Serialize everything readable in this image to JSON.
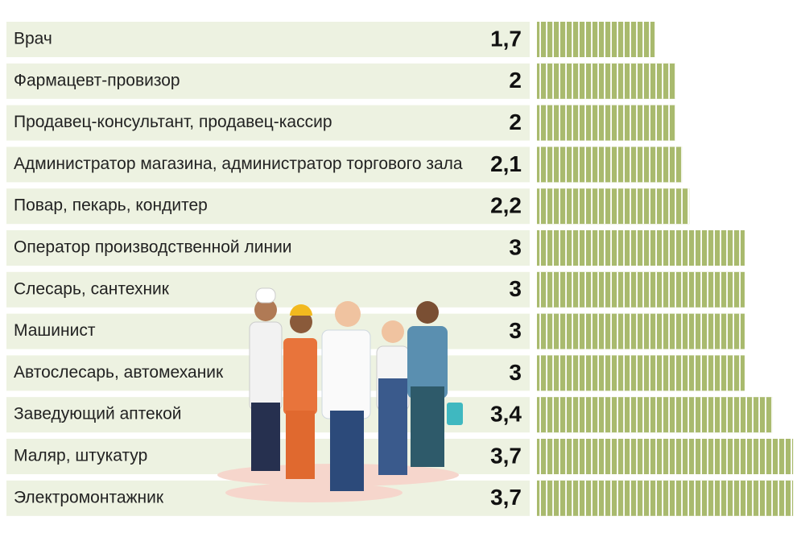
{
  "chart_data": {
    "type": "bar",
    "orientation": "horizontal",
    "color": "#a9ba6e",
    "row_color": "#edf2e1",
    "categories": [
      "Врач",
      "Фармацевт-провизор",
      "Продавец-консультант, продавец-кассир",
      "Администратор магазина, администратор торгового зала",
      "Повар, пекарь, кондитер",
      "Оператор производственной линии",
      "Слесарь, сантехник",
      "Машинист",
      "Автослесарь, автомеханик",
      "Заведующий аптекой",
      "Маляр, штукатур",
      "Электромонтажник"
    ],
    "values": [
      1.7,
      2,
      2,
      2.1,
      2.2,
      3,
      3,
      3,
      3,
      3.4,
      3.7,
      3.7
    ],
    "value_labels": [
      "1,7",
      "2",
      "2",
      "2,1",
      "2,2",
      "3",
      "3",
      "3",
      "3",
      "3,4",
      "3,7",
      "3,7"
    ]
  }
}
